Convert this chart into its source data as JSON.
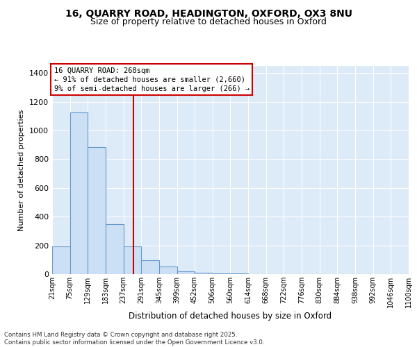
{
  "title_line1": "16, QUARRY ROAD, HEADINGTON, OXFORD, OX3 8NU",
  "title_line2": "Size of property relative to detached houses in Oxford",
  "xlabel": "Distribution of detached houses by size in Oxford",
  "ylabel": "Number of detached properties",
  "bar_edges": [
    21,
    75,
    129,
    183,
    237,
    291,
    345,
    399,
    452,
    506,
    560,
    614,
    668,
    722,
    776,
    830,
    884,
    938,
    992,
    1046,
    1100
  ],
  "bar_heights": [
    195,
    1125,
    885,
    350,
    195,
    95,
    55,
    20,
    12,
    5,
    3,
    2,
    1,
    0,
    0,
    0,
    0,
    0,
    0,
    0
  ],
  "bar_color": "#cce0f5",
  "bar_edge_color": "#6699cc",
  "property_size": 268,
  "vline_color": "#cc0000",
  "annotation_box_color": "#cc0000",
  "annotation_text_line1": "16 QUARRY ROAD: 268sqm",
  "annotation_text_line2": "← 91% of detached houses are smaller (2,660)",
  "annotation_text_line3": "9% of semi-detached houses are larger (266) →",
  "ylim": [
    0,
    1450
  ],
  "background_color": "#ddeaf7",
  "grid_color": "#ffffff",
  "title_fontsize": 10,
  "subtitle_fontsize": 9,
  "footer_line1": "Contains HM Land Registry data © Crown copyright and database right 2025.",
  "footer_line2": "Contains public sector information licensed under the Open Government Licence v3.0.",
  "tick_labels": [
    "21sqm",
    "75sqm",
    "129sqm",
    "183sqm",
    "237sqm",
    "291sqm",
    "345sqm",
    "399sqm",
    "452sqm",
    "506sqm",
    "560sqm",
    "614sqm",
    "668sqm",
    "722sqm",
    "776sqm",
    "830sqm",
    "884sqm",
    "938sqm",
    "992sqm",
    "1046sqm",
    "1100sqm"
  ]
}
